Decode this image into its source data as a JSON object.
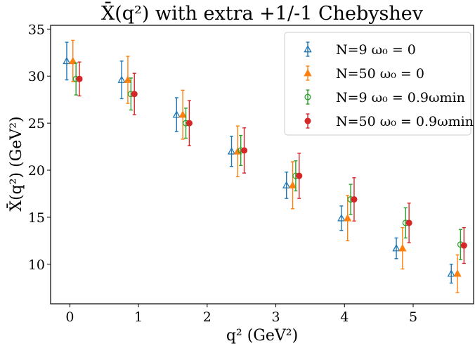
{
  "chart_data": {
    "type": "scatter",
    "title": "X̄(q²) with extra +1/-1 Chebyshev",
    "xlabel": "q² (GeV²)",
    "ylabel": "X̄(q²) (GeV²)",
    "xlim": [
      -0.28,
      5.88
    ],
    "ylim": [
      5.8,
      35.4
    ],
    "xticks": [
      "0",
      "1",
      "2",
      "3",
      "4",
      "5"
    ],
    "yticks": [
      "10",
      "15",
      "20",
      "25",
      "30",
      "35"
    ],
    "grid": false,
    "legend": "top-right",
    "series": [
      {
        "name": "N=9 ω₀ = 0",
        "color": "#1f77b4",
        "marker": "triangle-open",
        "x": [
          0.0,
          0.8,
          1.6,
          2.4,
          3.2,
          4.0,
          4.8,
          5.6
        ],
        "y": [
          31.6,
          29.6,
          25.9,
          22.0,
          18.4,
          14.9,
          11.7,
          9.0
        ],
        "err": [
          2.0,
          2.0,
          1.8,
          1.6,
          1.4,
          1.3,
          1.1,
          1.0
        ]
      },
      {
        "name": "N=50 ω₀ = 0",
        "color": "#ff7f0e",
        "marker": "triangle-filled",
        "x": [
          0.0,
          0.8,
          1.6,
          2.4,
          3.2,
          4.0,
          4.8,
          5.6
        ],
        "y": [
          31.6,
          29.6,
          25.9,
          22.0,
          18.4,
          14.9,
          11.7,
          9.0
        ],
        "err": [
          2.2,
          2.5,
          2.6,
          2.7,
          2.5,
          2.4,
          2.2,
          2.0
        ]
      },
      {
        "name": "N=9 ω₀ = 0.9ωmin",
        "color": "#2ca02c",
        "marker": "circle-open",
        "x": [
          0.0,
          0.8,
          1.6,
          2.4,
          3.2,
          4.0,
          4.8,
          5.6
        ],
        "y": [
          29.7,
          28.1,
          25.0,
          22.1,
          19.4,
          16.9,
          14.4,
          12.1
        ],
        "err": [
          1.7,
          1.7,
          1.6,
          1.6,
          1.6,
          1.6,
          1.6,
          1.6
        ]
      },
      {
        "name": "N=50 ω₀ = 0.9ωmin",
        "color": "#d62728",
        "marker": "circle-filled",
        "x": [
          0.0,
          0.8,
          1.6,
          2.4,
          3.2,
          4.0,
          4.8,
          5.6
        ],
        "y": [
          29.7,
          28.1,
          25.0,
          22.1,
          19.4,
          16.9,
          14.4,
          12.0
        ],
        "err": [
          1.8,
          2.2,
          2.4,
          2.4,
          2.4,
          2.3,
          2.1,
          1.9
        ]
      }
    ]
  }
}
